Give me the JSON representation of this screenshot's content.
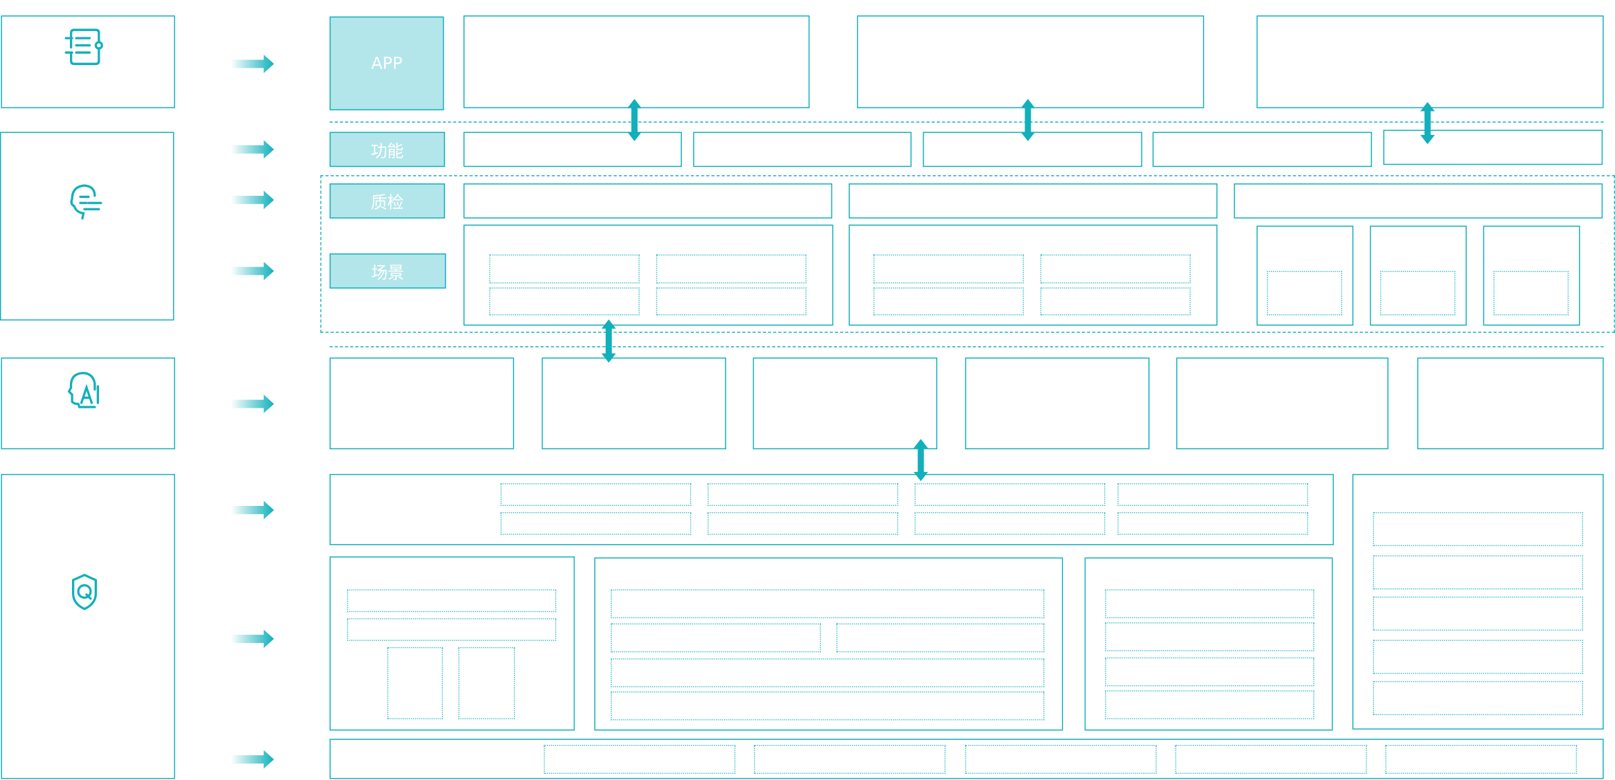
{
  "colors": {
    "accent": "#12b0bb",
    "label_fill": "#b3e6ea",
    "label_text": "#ffffff"
  },
  "left_column": {
    "icons": [
      "document-list-icon",
      "head-speech-icon",
      "ai-head-icon",
      "shield-q-icon"
    ]
  },
  "layer_labels": {
    "app": "APP",
    "function": "功能",
    "quality_check": "质检",
    "scene": "场景"
  }
}
